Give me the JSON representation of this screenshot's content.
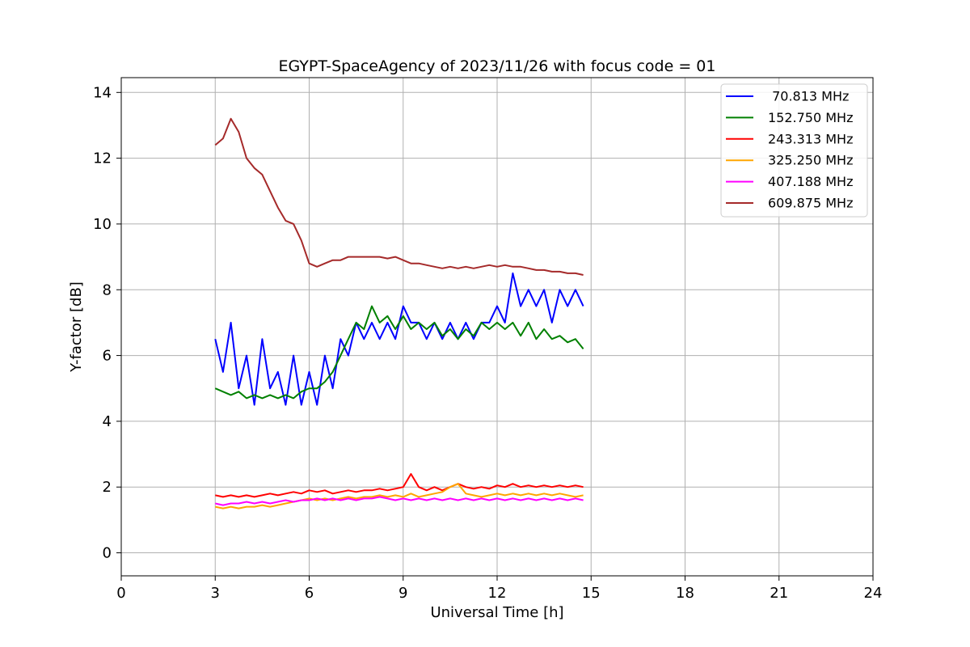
{
  "chart_data": {
    "type": "line",
    "title": "EGYPT-SpaceAgency of 2023/11/26 with focus code = 01",
    "xlabel": "Universal Time [h]",
    "ylabel": "Y-factor [dB]",
    "xlim": [
      0,
      24
    ],
    "ylim": [
      -0.7,
      14.45
    ],
    "xticks": [
      0,
      3,
      6,
      9,
      12,
      15,
      18,
      21,
      24
    ],
    "yticks": [
      0,
      2,
      4,
      6,
      8,
      10,
      12,
      14
    ],
    "grid": true,
    "legend_position": "top-right",
    "series": [
      {
        "name": " 70.813 MHz",
        "color": "#0000ff",
        "x": [
          3.0,
          3.25,
          3.5,
          3.75,
          4.0,
          4.25,
          4.5,
          4.75,
          5.0,
          5.25,
          5.5,
          5.75,
          6.0,
          6.25,
          6.5,
          6.75,
          7.0,
          7.25,
          7.5,
          7.75,
          8.0,
          8.25,
          8.5,
          8.75,
          9.0,
          9.25,
          9.5,
          9.75,
          10.0,
          10.25,
          10.5,
          10.75,
          11.0,
          11.25,
          11.5,
          11.75,
          12.0,
          12.25,
          12.5,
          12.75,
          13.0,
          13.25,
          13.5,
          13.75,
          14.0,
          14.25,
          14.5,
          14.75
        ],
        "y": [
          6.5,
          5.5,
          7.0,
          5.0,
          6.0,
          4.5,
          6.5,
          5.0,
          5.5,
          4.5,
          6.0,
          4.5,
          5.5,
          4.5,
          6.0,
          5.0,
          6.5,
          6.0,
          7.0,
          6.5,
          7.0,
          6.5,
          7.0,
          6.5,
          7.5,
          7.0,
          7.0,
          6.5,
          7.0,
          6.5,
          7.0,
          6.5,
          7.0,
          6.5,
          7.0,
          7.0,
          7.5,
          7.0,
          8.5,
          7.5,
          8.0,
          7.5,
          8.0,
          7.0,
          8.0,
          7.5,
          8.0,
          7.5
        ]
      },
      {
        "name": "152.750 MHz",
        "color": "#008000",
        "x": [
          3.0,
          3.25,
          3.5,
          3.75,
          4.0,
          4.25,
          4.5,
          4.75,
          5.0,
          5.25,
          5.5,
          5.75,
          6.0,
          6.25,
          6.5,
          6.75,
          7.0,
          7.25,
          7.5,
          7.75,
          8.0,
          8.25,
          8.5,
          8.75,
          9.0,
          9.25,
          9.5,
          9.75,
          10.0,
          10.25,
          10.5,
          10.75,
          11.0,
          11.25,
          11.5,
          11.75,
          12.0,
          12.25,
          12.5,
          12.75,
          13.0,
          13.25,
          13.5,
          13.75,
          14.0,
          14.25,
          14.5,
          14.75
        ],
        "y": [
          5.0,
          4.9,
          4.8,
          4.9,
          4.7,
          4.8,
          4.7,
          4.8,
          4.7,
          4.8,
          4.7,
          4.9,
          5.0,
          5.0,
          5.2,
          5.5,
          6.0,
          6.5,
          7.0,
          6.8,
          7.5,
          7.0,
          7.2,
          6.8,
          7.2,
          6.8,
          7.0,
          6.8,
          7.0,
          6.6,
          6.8,
          6.5,
          6.8,
          6.6,
          7.0,
          6.8,
          7.0,
          6.8,
          7.0,
          6.6,
          7.0,
          6.5,
          6.8,
          6.5,
          6.6,
          6.4,
          6.5,
          6.2
        ]
      },
      {
        "name": "243.313 MHz",
        "color": "#ff0000",
        "x": [
          3.0,
          3.25,
          3.5,
          3.75,
          4.0,
          4.25,
          4.5,
          4.75,
          5.0,
          5.25,
          5.5,
          5.75,
          6.0,
          6.25,
          6.5,
          6.75,
          7.0,
          7.25,
          7.5,
          7.75,
          8.0,
          8.25,
          8.5,
          8.75,
          9.0,
          9.25,
          9.5,
          9.75,
          10.0,
          10.25,
          10.5,
          10.75,
          11.0,
          11.25,
          11.5,
          11.75,
          12.0,
          12.25,
          12.5,
          12.75,
          13.0,
          13.25,
          13.5,
          13.75,
          14.0,
          14.25,
          14.5,
          14.75
        ],
        "y": [
          1.75,
          1.7,
          1.75,
          1.7,
          1.75,
          1.7,
          1.75,
          1.8,
          1.75,
          1.8,
          1.85,
          1.8,
          1.9,
          1.85,
          1.9,
          1.8,
          1.85,
          1.9,
          1.85,
          1.9,
          1.9,
          1.95,
          1.9,
          1.95,
          2.0,
          2.4,
          2.0,
          1.9,
          2.0,
          1.9,
          2.0,
          2.1,
          2.0,
          1.95,
          2.0,
          1.95,
          2.05,
          2.0,
          2.1,
          2.0,
          2.05,
          2.0,
          2.05,
          2.0,
          2.05,
          2.0,
          2.05,
          2.0
        ]
      },
      {
        "name": "325.250 MHz",
        "color": "#ffa500",
        "x": [
          3.0,
          3.25,
          3.5,
          3.75,
          4.0,
          4.25,
          4.5,
          4.75,
          5.0,
          5.25,
          5.5,
          5.75,
          6.0,
          6.25,
          6.5,
          6.75,
          7.0,
          7.25,
          7.5,
          7.75,
          8.0,
          8.25,
          8.5,
          8.75,
          9.0,
          9.25,
          9.5,
          9.75,
          10.0,
          10.25,
          10.5,
          10.75,
          11.0,
          11.25,
          11.5,
          11.75,
          12.0,
          12.25,
          12.5,
          12.75,
          13.0,
          13.25,
          13.5,
          13.75,
          14.0,
          14.25,
          14.5,
          14.75
        ],
        "y": [
          1.4,
          1.35,
          1.4,
          1.35,
          1.4,
          1.4,
          1.45,
          1.4,
          1.45,
          1.5,
          1.55,
          1.6,
          1.65,
          1.6,
          1.65,
          1.6,
          1.65,
          1.7,
          1.65,
          1.7,
          1.7,
          1.75,
          1.7,
          1.75,
          1.7,
          1.8,
          1.7,
          1.75,
          1.8,
          1.85,
          2.0,
          2.1,
          1.8,
          1.75,
          1.7,
          1.75,
          1.8,
          1.75,
          1.8,
          1.75,
          1.8,
          1.75,
          1.8,
          1.75,
          1.8,
          1.75,
          1.7,
          1.75
        ]
      },
      {
        "name": "407.188 MHz",
        "color": "#ff00ff",
        "x": [
          3.0,
          3.25,
          3.5,
          3.75,
          4.0,
          4.25,
          4.5,
          4.75,
          5.0,
          5.25,
          5.5,
          5.75,
          6.0,
          6.25,
          6.5,
          6.75,
          7.0,
          7.25,
          7.5,
          7.75,
          8.0,
          8.25,
          8.5,
          8.75,
          9.0,
          9.25,
          9.5,
          9.75,
          10.0,
          10.25,
          10.5,
          10.75,
          11.0,
          11.25,
          11.5,
          11.75,
          12.0,
          12.25,
          12.5,
          12.75,
          13.0,
          13.25,
          13.5,
          13.75,
          14.0,
          14.25,
          14.5,
          14.75
        ],
        "y": [
          1.5,
          1.45,
          1.5,
          1.5,
          1.55,
          1.5,
          1.55,
          1.5,
          1.55,
          1.6,
          1.55,
          1.6,
          1.6,
          1.65,
          1.6,
          1.65,
          1.6,
          1.65,
          1.6,
          1.65,
          1.65,
          1.7,
          1.65,
          1.6,
          1.65,
          1.6,
          1.65,
          1.6,
          1.65,
          1.6,
          1.65,
          1.6,
          1.65,
          1.6,
          1.65,
          1.6,
          1.65,
          1.6,
          1.65,
          1.6,
          1.65,
          1.6,
          1.65,
          1.6,
          1.65,
          1.6,
          1.65,
          1.6
        ]
      },
      {
        "name": "609.875 MHz",
        "color": "#a52a2a",
        "x": [
          3.0,
          3.25,
          3.5,
          3.75,
          4.0,
          4.25,
          4.5,
          4.75,
          5.0,
          5.25,
          5.5,
          5.75,
          6.0,
          6.25,
          6.5,
          6.75,
          7.0,
          7.25,
          7.5,
          7.75,
          8.0,
          8.25,
          8.5,
          8.75,
          9.0,
          9.25,
          9.5,
          9.75,
          10.0,
          10.25,
          10.5,
          10.75,
          11.0,
          11.25,
          11.5,
          11.75,
          12.0,
          12.25,
          12.5,
          12.75,
          13.0,
          13.25,
          13.5,
          13.75,
          14.0,
          14.25,
          14.5,
          14.75
        ],
        "y": [
          12.4,
          12.6,
          13.2,
          12.8,
          12.0,
          11.7,
          11.5,
          11.0,
          10.5,
          10.1,
          10.0,
          9.5,
          8.8,
          8.7,
          8.8,
          8.9,
          8.9,
          9.0,
          9.0,
          9.0,
          9.0,
          9.0,
          8.95,
          9.0,
          8.9,
          8.8,
          8.8,
          8.75,
          8.7,
          8.65,
          8.7,
          8.65,
          8.7,
          8.65,
          8.7,
          8.75,
          8.7,
          8.75,
          8.7,
          8.7,
          8.65,
          8.6,
          8.6,
          8.55,
          8.55,
          8.5,
          8.5,
          8.45
        ]
      }
    ]
  }
}
